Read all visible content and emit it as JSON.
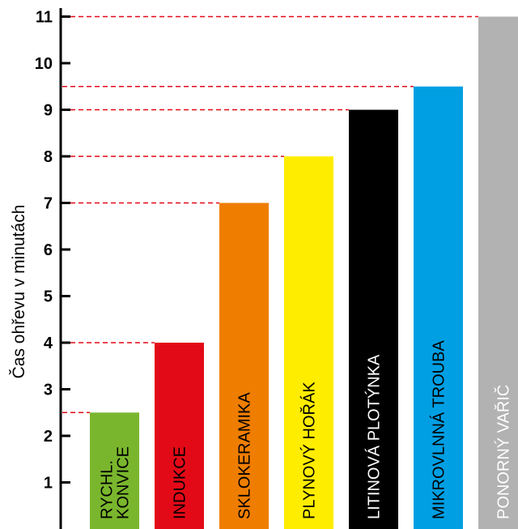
{
  "chart_data": {
    "type": "bar",
    "ylabel": "Čas ohřevu v minutách",
    "ylim": [
      0,
      11.5
    ],
    "yticks": [
      1,
      2,
      3,
      4,
      5,
      6,
      7,
      8,
      9,
      10,
      11
    ],
    "grid": "dashed reference lines at bar tops",
    "bars": [
      {
        "label_lines": [
          "RYCHL.",
          "KONVICE"
        ],
        "value": 2.5,
        "color": "#7ab62d",
        "text_color": "#000000"
      },
      {
        "label_lines": [
          "INDUKCE"
        ],
        "value": 4,
        "color": "#e30a17",
        "text_color": "#000000"
      },
      {
        "label_lines": [
          "SKLOKERAMIKA"
        ],
        "value": 7,
        "color": "#ef7d00",
        "text_color": "#000000"
      },
      {
        "label_lines": [
          "PLYNOVÝ HOŘÁK"
        ],
        "value": 8,
        "color": "#ffed00",
        "text_color": "#000000"
      },
      {
        "label_lines": [
          "LITINOVÁ PLOTÝNKA"
        ],
        "value": 9,
        "color": "#000000",
        "text_color": "#ffffff"
      },
      {
        "label_lines": [
          "MIKROVLNNÁ TROUBA"
        ],
        "value": 9.5,
        "color": "#009fe3",
        "text_color": "#000000"
      },
      {
        "label_lines": [
          "PONORNÝ VAŘIČ"
        ],
        "value": 11,
        "color": "#b2b2b2",
        "text_color": "#ffffff"
      }
    ],
    "reference_line_color": "#e30a17",
    "axis_color": "#000000"
  }
}
